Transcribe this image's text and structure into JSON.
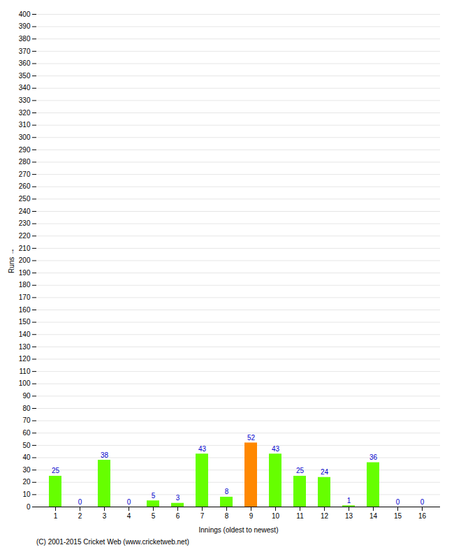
{
  "chart_data": {
    "type": "bar",
    "xlabel": "Innings (oldest to newest)",
    "ylabel": "Runs",
    "caption": "(C) 2001-2015 Cricket Web (www.cricketweb.net)",
    "categories": [
      "1",
      "2",
      "3",
      "4",
      "5",
      "6",
      "7",
      "8",
      "9",
      "10",
      "11",
      "12",
      "13",
      "14",
      "15",
      "16"
    ],
    "values": [
      25,
      0,
      38,
      0,
      5,
      3,
      43,
      8,
      52,
      43,
      25,
      24,
      1,
      36,
      0,
      0
    ],
    "colors": [
      "#66ff00",
      "#66ff00",
      "#66ff00",
      "#66ff00",
      "#66ff00",
      "#66ff00",
      "#66ff00",
      "#66ff00",
      "#ff8800",
      "#66ff00",
      "#66ff00",
      "#66ff00",
      "#66ff00",
      "#66ff00",
      "#66ff00",
      "#66ff00"
    ],
    "ylim": [
      0,
      400
    ],
    "yticks": [
      0,
      10,
      20,
      30,
      40,
      50,
      60,
      70,
      80,
      90,
      100,
      110,
      120,
      130,
      140,
      150,
      160,
      170,
      180,
      190,
      200,
      210,
      220,
      230,
      240,
      250,
      260,
      270,
      280,
      290,
      300,
      310,
      320,
      330,
      340,
      350,
      360,
      370,
      380,
      390,
      400
    ],
    "grid": true,
    "data_labels": true
  }
}
